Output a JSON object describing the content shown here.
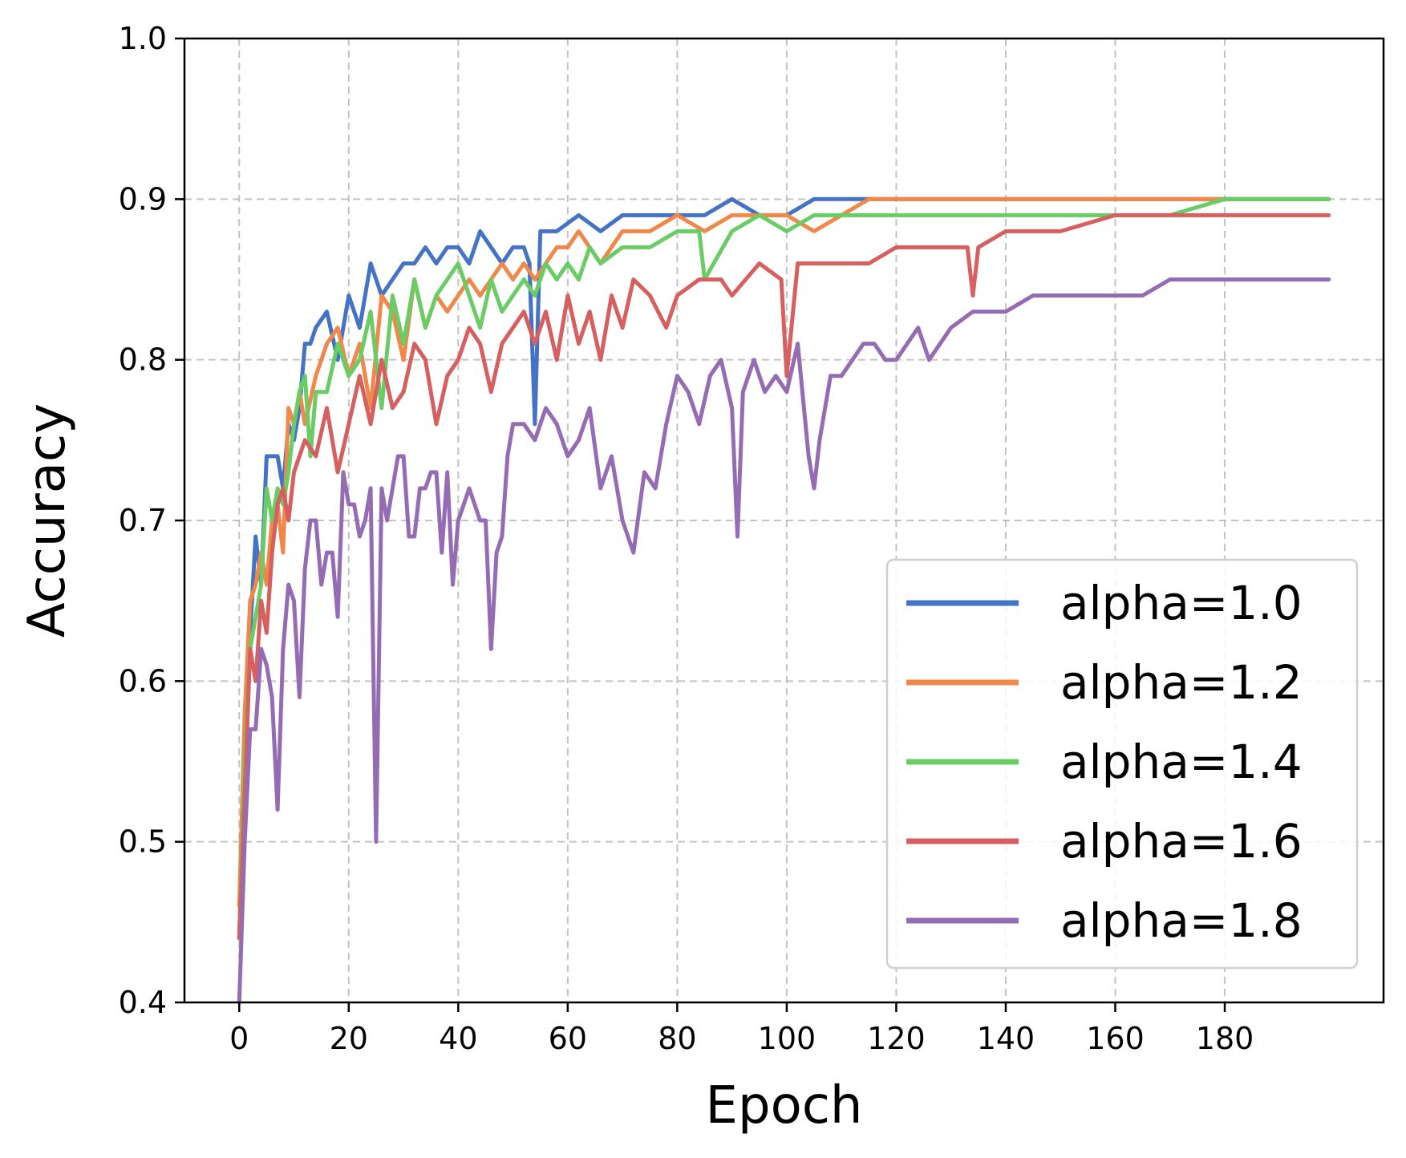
{
  "chart_data": {
    "type": "line",
    "title": "",
    "xlabel": "Epoch",
    "ylabel": "Accuracy",
    "xlim": [
      -10,
      209
    ],
    "ylim": [
      0.4,
      1.0
    ],
    "xticks": [
      0,
      20,
      40,
      60,
      80,
      100,
      120,
      140,
      160,
      180
    ],
    "yticks": [
      0.4,
      0.5,
      0.6,
      0.7,
      0.8,
      0.9,
      1.0
    ],
    "xtick_labels": [
      "0",
      "20",
      "40",
      "60",
      "80",
      "100",
      "120",
      "140",
      "160",
      "180"
    ],
    "ytick_labels": [
      "0.4",
      "0.5",
      "0.6",
      "0.7",
      "0.8",
      "0.9",
      "1.0"
    ],
    "grid": true,
    "legend_position": "lower-right",
    "series": [
      {
        "name": "alpha=1.0",
        "color": "#4472c4",
        "x": [
          0,
          1,
          2,
          3,
          4,
          5,
          6,
          7,
          8,
          9,
          10,
          11,
          12,
          13,
          14,
          16,
          18,
          20,
          22,
          24,
          26,
          28,
          30,
          32,
          34,
          36,
          38,
          40,
          42,
          44,
          46,
          48,
          50,
          52,
          53,
          54,
          55,
          58,
          62,
          66,
          70,
          75,
          80,
          85,
          90,
          95,
          100,
          105,
          110,
          115,
          120,
          130,
          140,
          150,
          160,
          170,
          180,
          190,
          199
        ],
        "values": [
          0.44,
          0.56,
          0.63,
          0.69,
          0.66,
          0.74,
          0.74,
          0.74,
          0.72,
          0.76,
          0.75,
          0.77,
          0.81,
          0.81,
          0.82,
          0.83,
          0.8,
          0.84,
          0.82,
          0.86,
          0.84,
          0.85,
          0.86,
          0.86,
          0.87,
          0.86,
          0.87,
          0.87,
          0.86,
          0.88,
          0.87,
          0.86,
          0.87,
          0.87,
          0.86,
          0.76,
          0.88,
          0.88,
          0.89,
          0.88,
          0.89,
          0.89,
          0.89,
          0.89,
          0.9,
          0.89,
          0.89,
          0.9,
          0.9,
          0.9,
          0.9,
          0.9,
          0.9,
          0.9,
          0.9,
          0.9,
          0.9,
          0.9,
          0.9
        ]
      },
      {
        "name": "alpha=1.2",
        "color": "#f0884a",
        "x": [
          0,
          1,
          2,
          3,
          4,
          5,
          6,
          7,
          8,
          9,
          10,
          11,
          12,
          14,
          16,
          18,
          20,
          22,
          24,
          26,
          28,
          30,
          32,
          34,
          36,
          38,
          40,
          42,
          44,
          46,
          48,
          50,
          52,
          54,
          56,
          58,
          60,
          62,
          64,
          66,
          70,
          75,
          80,
          85,
          90,
          95,
          100,
          105,
          110,
          115,
          120,
          130,
          140,
          150,
          160,
          170,
          180,
          190,
          199
        ],
        "values": [
          0.46,
          0.58,
          0.65,
          0.66,
          0.68,
          0.66,
          0.7,
          0.71,
          0.68,
          0.77,
          0.76,
          0.78,
          0.76,
          0.79,
          0.81,
          0.82,
          0.79,
          0.81,
          0.77,
          0.84,
          0.83,
          0.8,
          0.85,
          0.82,
          0.84,
          0.83,
          0.84,
          0.85,
          0.84,
          0.85,
          0.86,
          0.85,
          0.86,
          0.85,
          0.86,
          0.87,
          0.87,
          0.88,
          0.87,
          0.86,
          0.88,
          0.88,
          0.89,
          0.88,
          0.89,
          0.89,
          0.89,
          0.88,
          0.89,
          0.9,
          0.9,
          0.9,
          0.9,
          0.9,
          0.9,
          0.9,
          0.9,
          0.9,
          0.9
        ]
      },
      {
        "name": "alpha=1.4",
        "color": "#6acc65",
        "x": [
          0,
          1,
          2,
          3,
          4,
          5,
          6,
          7,
          8,
          9,
          10,
          11,
          12,
          13,
          14,
          16,
          18,
          20,
          22,
          24,
          26,
          28,
          30,
          32,
          34,
          36,
          38,
          40,
          42,
          44,
          46,
          48,
          50,
          52,
          54,
          56,
          58,
          60,
          62,
          64,
          66,
          70,
          75,
          80,
          84,
          85,
          90,
          95,
          100,
          105,
          110,
          115,
          120,
          130,
          140,
          150,
          160,
          170,
          180,
          190,
          199
        ],
        "values": [
          0.44,
          0.55,
          0.62,
          0.64,
          0.66,
          0.72,
          0.7,
          0.72,
          0.71,
          0.73,
          0.76,
          0.78,
          0.79,
          0.74,
          0.78,
          0.78,
          0.81,
          0.79,
          0.8,
          0.83,
          0.77,
          0.84,
          0.81,
          0.85,
          0.82,
          0.84,
          0.85,
          0.86,
          0.84,
          0.82,
          0.85,
          0.83,
          0.84,
          0.85,
          0.84,
          0.86,
          0.85,
          0.86,
          0.85,
          0.87,
          0.86,
          0.87,
          0.87,
          0.88,
          0.88,
          0.85,
          0.88,
          0.89,
          0.88,
          0.89,
          0.89,
          0.89,
          0.89,
          0.89,
          0.89,
          0.89,
          0.89,
          0.89,
          0.9,
          0.9,
          0.9
        ]
      },
      {
        "name": "alpha=1.6",
        "color": "#d65f5f",
        "x": [
          0,
          1,
          2,
          3,
          4,
          5,
          6,
          7,
          8,
          9,
          10,
          12,
          14,
          16,
          18,
          20,
          22,
          24,
          26,
          28,
          30,
          32,
          34,
          36,
          38,
          40,
          42,
          44,
          46,
          48,
          50,
          52,
          54,
          56,
          58,
          60,
          62,
          64,
          66,
          68,
          70,
          72,
          75,
          78,
          80,
          84,
          88,
          90,
          95,
          99,
          100,
          102,
          105,
          110,
          115,
          120,
          125,
          130,
          133,
          134,
          135,
          140,
          145,
          150,
          160,
          170,
          180,
          190,
          199
        ],
        "values": [
          0.44,
          0.53,
          0.62,
          0.6,
          0.65,
          0.63,
          0.68,
          0.71,
          0.72,
          0.7,
          0.73,
          0.75,
          0.74,
          0.77,
          0.73,
          0.76,
          0.79,
          0.76,
          0.8,
          0.77,
          0.78,
          0.81,
          0.8,
          0.76,
          0.79,
          0.8,
          0.82,
          0.81,
          0.78,
          0.81,
          0.82,
          0.83,
          0.81,
          0.83,
          0.8,
          0.84,
          0.81,
          0.83,
          0.8,
          0.84,
          0.82,
          0.85,
          0.84,
          0.82,
          0.84,
          0.85,
          0.85,
          0.84,
          0.86,
          0.85,
          0.79,
          0.86,
          0.86,
          0.86,
          0.86,
          0.87,
          0.87,
          0.87,
          0.87,
          0.84,
          0.87,
          0.88,
          0.88,
          0.88,
          0.89,
          0.89,
          0.89,
          0.89,
          0.89
        ]
      },
      {
        "name": "alpha=1.8",
        "color": "#956cb4",
        "x": [
          0,
          1,
          2,
          3,
          4,
          5,
          6,
          7,
          8,
          9,
          10,
          11,
          12,
          13,
          14,
          15,
          16,
          17,
          18,
          19,
          20,
          21,
          22,
          23,
          24,
          25,
          26,
          27,
          28,
          29,
          30,
          31,
          32,
          33,
          34,
          35,
          36,
          37,
          38,
          39,
          40,
          41,
          42,
          43,
          44,
          45,
          46,
          47,
          48,
          49,
          50,
          52,
          54,
          56,
          58,
          60,
          62,
          64,
          66,
          68,
          70,
          72,
          74,
          76,
          78,
          80,
          82,
          84,
          86,
          88,
          90,
          91,
          92,
          94,
          96,
          98,
          100,
          102,
          104,
          105,
          106,
          108,
          110,
          112,
          114,
          116,
          118,
          120,
          122,
          124,
          126,
          128,
          130,
          134,
          138,
          140,
          145,
          150,
          155,
          160,
          165,
          170,
          175,
          180,
          185,
          190,
          195,
          199
        ],
        "values": [
          0.4,
          0.5,
          0.57,
          0.57,
          0.62,
          0.61,
          0.59,
          0.52,
          0.62,
          0.66,
          0.65,
          0.59,
          0.67,
          0.7,
          0.7,
          0.66,
          0.68,
          0.68,
          0.64,
          0.73,
          0.71,
          0.71,
          0.69,
          0.7,
          0.72,
          0.5,
          0.72,
          0.7,
          0.72,
          0.74,
          0.74,
          0.69,
          0.69,
          0.72,
          0.72,
          0.73,
          0.73,
          0.68,
          0.73,
          0.66,
          0.7,
          0.71,
          0.72,
          0.71,
          0.7,
          0.7,
          0.62,
          0.68,
          0.69,
          0.74,
          0.76,
          0.76,
          0.75,
          0.77,
          0.76,
          0.74,
          0.75,
          0.77,
          0.72,
          0.74,
          0.7,
          0.68,
          0.73,
          0.72,
          0.76,
          0.79,
          0.78,
          0.76,
          0.79,
          0.8,
          0.77,
          0.69,
          0.78,
          0.8,
          0.78,
          0.79,
          0.78,
          0.81,
          0.74,
          0.72,
          0.75,
          0.79,
          0.79,
          0.8,
          0.81,
          0.81,
          0.8,
          0.8,
          0.81,
          0.82,
          0.8,
          0.81,
          0.82,
          0.83,
          0.83,
          0.83,
          0.84,
          0.84,
          0.84,
          0.84,
          0.84,
          0.85,
          0.85,
          0.85,
          0.85,
          0.85,
          0.85,
          0.85
        ]
      }
    ]
  }
}
